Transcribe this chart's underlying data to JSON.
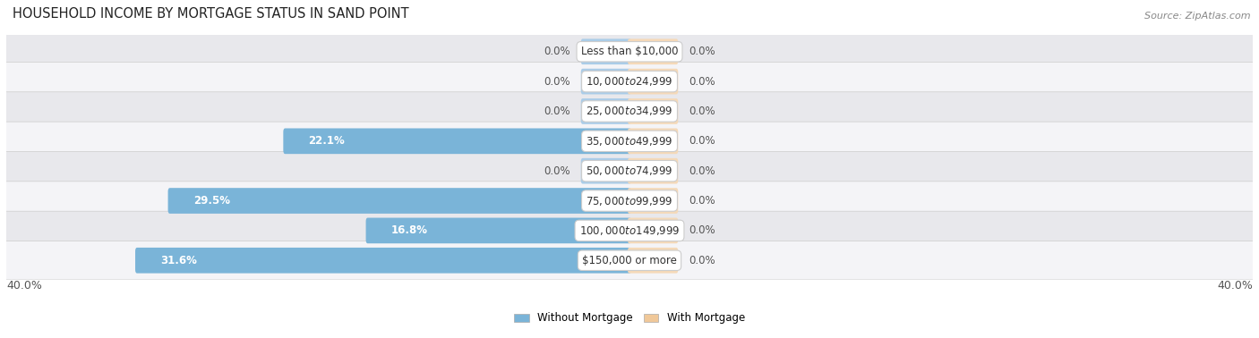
{
  "title": "HOUSEHOLD INCOME BY MORTGAGE STATUS IN SAND POINT",
  "source": "Source: ZipAtlas.com",
  "categories": [
    "Less than $10,000",
    "$10,000 to $24,999",
    "$25,000 to $34,999",
    "$35,000 to $49,999",
    "$50,000 to $74,999",
    "$75,000 to $99,999",
    "$100,000 to $149,999",
    "$150,000 or more"
  ],
  "without_mortgage": [
    0.0,
    0.0,
    0.0,
    22.1,
    0.0,
    29.5,
    16.8,
    31.6
  ],
  "with_mortgage": [
    0.0,
    0.0,
    0.0,
    0.0,
    0.0,
    0.0,
    0.0,
    0.0
  ],
  "xlim": 40.0,
  "stub_size": 3.0,
  "color_without": "#7ab4d8",
  "color_without_stub": "#aacce8",
  "color_with": "#f0c899",
  "color_with_stub": "#f5d9b8",
  "bg_row_light": "#e8e8ec",
  "bg_row_white": "#f4f4f7",
  "bar_height": 0.62,
  "legend_labels": [
    "Without Mortgage",
    "With Mortgage"
  ],
  "label_fontsize": 8.5,
  "cat_fontsize": 8.5,
  "title_fontsize": 10.5,
  "source_fontsize": 8.0,
  "axis_label_fontsize": 9.0
}
